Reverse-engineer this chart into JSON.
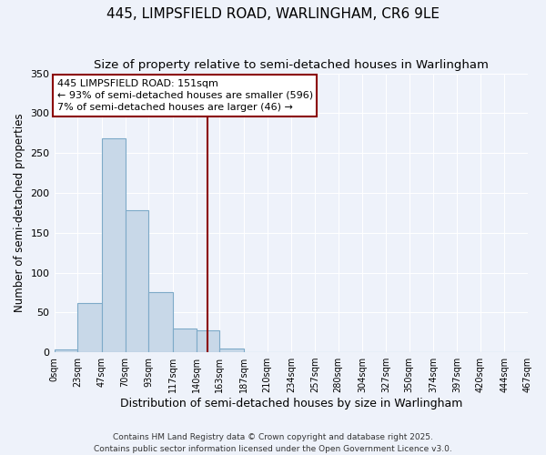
{
  "title": "445, LIMPSFIELD ROAD, WARLINGHAM, CR6 9LE",
  "subtitle": "Size of property relative to semi-detached houses in Warlingham",
  "xlabel": "Distribution of semi-detached houses by size in Warlingham",
  "ylabel": "Number of semi-detached properties",
  "bin_edges": [
    0,
    23,
    47,
    70,
    93,
    117,
    140,
    163,
    187,
    210,
    234,
    257,
    280,
    304,
    327,
    350,
    374,
    397,
    420,
    444,
    467
  ],
  "bin_counts": [
    4,
    62,
    268,
    178,
    75,
    30,
    28,
    5,
    0,
    0,
    0,
    0,
    0,
    0,
    0,
    0,
    0,
    0,
    0,
    0
  ],
  "bar_color": "#c8d8e8",
  "bar_edge_color": "#7eaac8",
  "vline_x": 151,
  "vline_color": "#8b0000",
  "annotation_title": "445 LIMPSFIELD ROAD: 151sqm",
  "annotation_line1": "← 93% of semi-detached houses are smaller (596)",
  "annotation_line2": "7% of semi-detached houses are larger (46) →",
  "annotation_box_color": "#ffffff",
  "annotation_box_edge": "#8b0000",
  "ylim": [
    0,
    350
  ],
  "xlim": [
    0,
    467
  ],
  "tick_labels": [
    "0sqm",
    "23sqm",
    "47sqm",
    "70sqm",
    "93sqm",
    "117sqm",
    "140sqm",
    "163sqm",
    "187sqm",
    "210sqm",
    "234sqm",
    "257sqm",
    "280sqm",
    "304sqm",
    "327sqm",
    "350sqm",
    "374sqm",
    "397sqm",
    "420sqm",
    "444sqm",
    "467sqm"
  ],
  "footer1": "Contains HM Land Registry data © Crown copyright and database right 2025.",
  "footer2": "Contains public sector information licensed under the Open Government Licence v3.0.",
  "background_color": "#eef2fa",
  "grid_color": "#ffffff",
  "title_fontsize": 11,
  "subtitle_fontsize": 9.5,
  "tick_fontsize": 7,
  "ylabel_fontsize": 8.5,
  "xlabel_fontsize": 9,
  "footer_fontsize": 6.5,
  "annotation_fontsize": 8
}
